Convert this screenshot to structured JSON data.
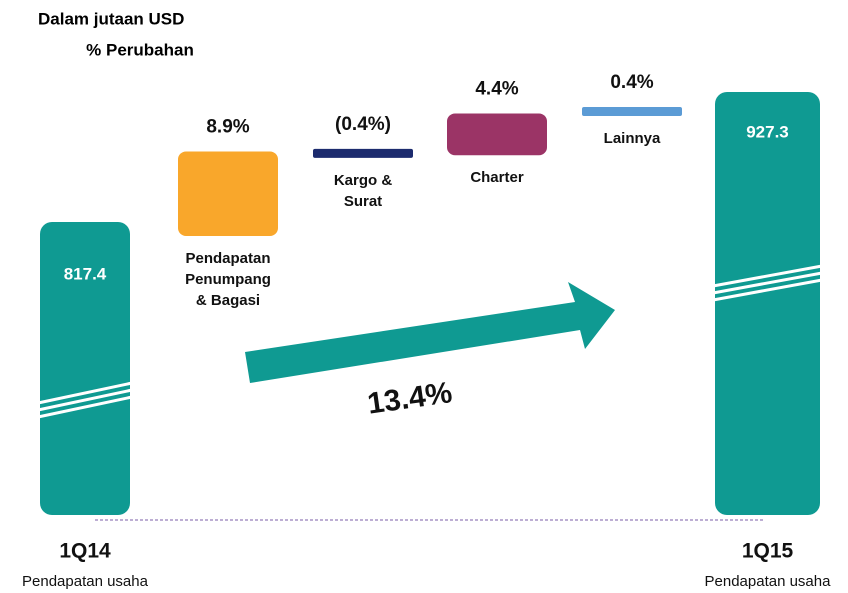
{
  "chart_data": {
    "type": "waterfall",
    "title": "Dalam jutaan USD",
    "subtitle": "% Perubahan",
    "start": {
      "category": "1Q14",
      "sublabel": "Pendapatan usaha",
      "value": 817.4,
      "color": "#0f9a92"
    },
    "end": {
      "category": "1Q15",
      "sublabel": "Pendapatan usaha",
      "value": 927.3,
      "color": "#0f9a92"
    },
    "categories": [
      "Pendapatan Penumpang & Bagasi",
      "Kargo & Surat",
      "Charter",
      "Lainnya"
    ],
    "values": [
      8.9,
      -0.4,
      4.4,
      0.4
    ],
    "value_labels": [
      "8.9%",
      "(0.4%)",
      "4.4%",
      "0.4%"
    ],
    "colors": [
      "#f9a72b",
      "#1c2b6e",
      "#9b3466",
      "#5b9bd5"
    ],
    "growth": {
      "value": 13.4,
      "label": "13.4%",
      "color": "#0f9a92"
    }
  }
}
